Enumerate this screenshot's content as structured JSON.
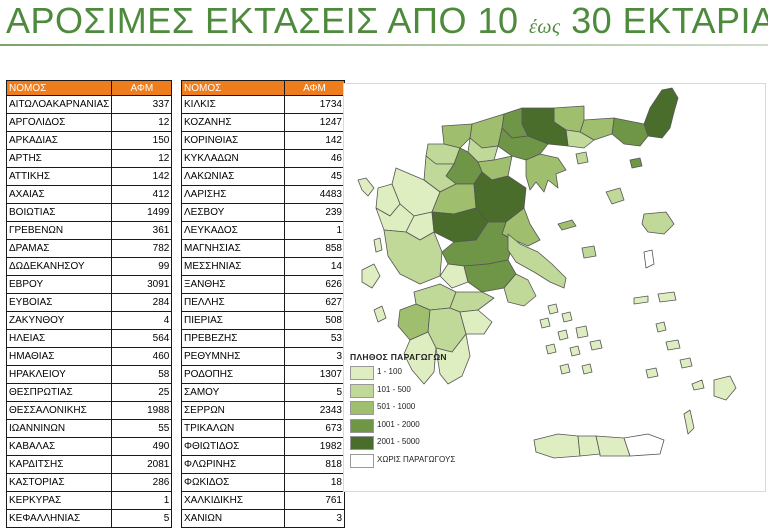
{
  "header": {
    "title_main": "ΑΡΟΣΙΜΕΣ ΕΚΤΑΣΕΙΣ ΑΠΟ 10 ",
    "title_small": "έως",
    "title_end": " 30 ΕΚΤΑΡΙΑ"
  },
  "table_headers": {
    "name": "ΝΟΜΟΣ",
    "value": "ΑΦΜ"
  },
  "table_left": [
    {
      "name": "ΑΙΤΩΛΟΑΚΑΡΝΑΝΙΑΣ",
      "value": "337"
    },
    {
      "name": "ΑΡΓΟΛΙΔΟΣ",
      "value": "12"
    },
    {
      "name": "ΑΡΚΑΔΙΑΣ",
      "value": "150"
    },
    {
      "name": "ΑΡΤΗΣ",
      "value": "12"
    },
    {
      "name": "ΑΤΤΙΚΗΣ",
      "value": "142"
    },
    {
      "name": "ΑΧΑΙΑΣ",
      "value": "412"
    },
    {
      "name": "ΒΟΙΩΤΙΑΣ",
      "value": "1499"
    },
    {
      "name": "ΓΡΕΒΕΝΩΝ",
      "value": "361"
    },
    {
      "name": "ΔΡΑΜΑΣ",
      "value": "782"
    },
    {
      "name": "ΔΩΔΕΚΑΝΗΣΟΥ",
      "value": "99"
    },
    {
      "name": "ΕΒΡΟΥ",
      "value": "3091"
    },
    {
      "name": "ΕΥΒΟΙΑΣ",
      "value": "284"
    },
    {
      "name": "ΖΑΚΥΝΘΟΥ",
      "value": "4"
    },
    {
      "name": "ΗΛΕΙΑΣ",
      "value": "564"
    },
    {
      "name": "ΗΜΑΘΙΑΣ",
      "value": "460"
    },
    {
      "name": "ΗΡΑΚΛΕΙΟΥ",
      "value": "58"
    },
    {
      "name": "ΘΕΣΠΡΩΤΙΑΣ",
      "value": "25"
    },
    {
      "name": "ΘΕΣΣΑΛΟΝΙΚΗΣ",
      "value": "1988"
    },
    {
      "name": "ΙΩΑΝΝΙΝΩΝ",
      "value": "55"
    },
    {
      "name": "ΚΑΒΑΛΑΣ",
      "value": "490"
    },
    {
      "name": "ΚΑΡΔΙΤΣΗΣ",
      "value": "2081"
    },
    {
      "name": "ΚΑΣΤΟΡΙΑΣ",
      "value": "286"
    },
    {
      "name": "ΚΕΡΚΥΡΑΣ",
      "value": "1"
    },
    {
      "name": "ΚΕΦΑΛΛΗΝΙΑΣ",
      "value": "5"
    }
  ],
  "table_right": [
    {
      "name": "ΚΙΛΚΙΣ",
      "value": "1734"
    },
    {
      "name": "ΚΟΖΑΝΗΣ",
      "value": "1247"
    },
    {
      "name": "ΚΟΡΙΝΘΙΑΣ",
      "value": "142"
    },
    {
      "name": "ΚΥΚΛΑΔΩΝ",
      "value": "46"
    },
    {
      "name": "ΛΑΚΩΝΙΑΣ",
      "value": "45"
    },
    {
      "name": "ΛΑΡΙΣΗΣ",
      "value": "4483"
    },
    {
      "name": "ΛΕΣΒΟΥ",
      "value": "239"
    },
    {
      "name": "ΛΕΥΚΑΔΟΣ",
      "value": "1"
    },
    {
      "name": "ΜΑΓΝΗΣΙΑΣ",
      "value": "858"
    },
    {
      "name": "ΜΕΣΣΗΝΙΑΣ",
      "value": "14"
    },
    {
      "name": "ΞΑΝΘΗΣ",
      "value": "626"
    },
    {
      "name": "ΠΕΛΛΗΣ",
      "value": "627"
    },
    {
      "name": "ΠΙΕΡΙΑΣ",
      "value": "508"
    },
    {
      "name": "ΠΡΕΒΕΖΗΣ",
      "value": "53"
    },
    {
      "name": "ΡΕΘΥΜΝΗΣ",
      "value": "3"
    },
    {
      "name": "ΡΟΔΟΠΗΣ",
      "value": "1307"
    },
    {
      "name": "ΣΑΜΟΥ",
      "value": "5"
    },
    {
      "name": "ΣΕΡΡΩΝ",
      "value": "2343"
    },
    {
      "name": "ΤΡΙΚΑΛΩΝ",
      "value": "673"
    },
    {
      "name": "ΦΘΙΩΤΙΔΟΣ",
      "value": "1982"
    },
    {
      "name": "ΦΛΩΡΙΝΗΣ",
      "value": "818"
    },
    {
      "name": "ΦΩΚΙΔΟΣ",
      "value": "18"
    },
    {
      "name": "ΧΑΛΚΙΔΙΚΗΣ",
      "value": "761"
    },
    {
      "name": "ΧΑΝΙΩΝ",
      "value": "3"
    }
  ],
  "legend": {
    "title": "ΠΛΗΘΟΣ ΠΑΡΑΓΩΓΩΝ",
    "items": [
      {
        "label": "1 - 100",
        "color": "#dfeec1"
      },
      {
        "label": "101 - 500",
        "color": "#c0d999"
      },
      {
        "label": "501 - 1000",
        "color": "#9fbf6f"
      },
      {
        "label": "1001 - 2000",
        "color": "#6f9546"
      },
      {
        "label": "2001 - 5000",
        "color": "#4a6d2c"
      },
      {
        "label": "ΧΩΡΙΣ ΠΑΡΑΓΩΓΟΥΣ",
        "color": "#ffffff"
      }
    ]
  },
  "colors": {
    "title": "#4d8a3c",
    "table_header": "#ee7d1e",
    "map_border": "#555555"
  }
}
